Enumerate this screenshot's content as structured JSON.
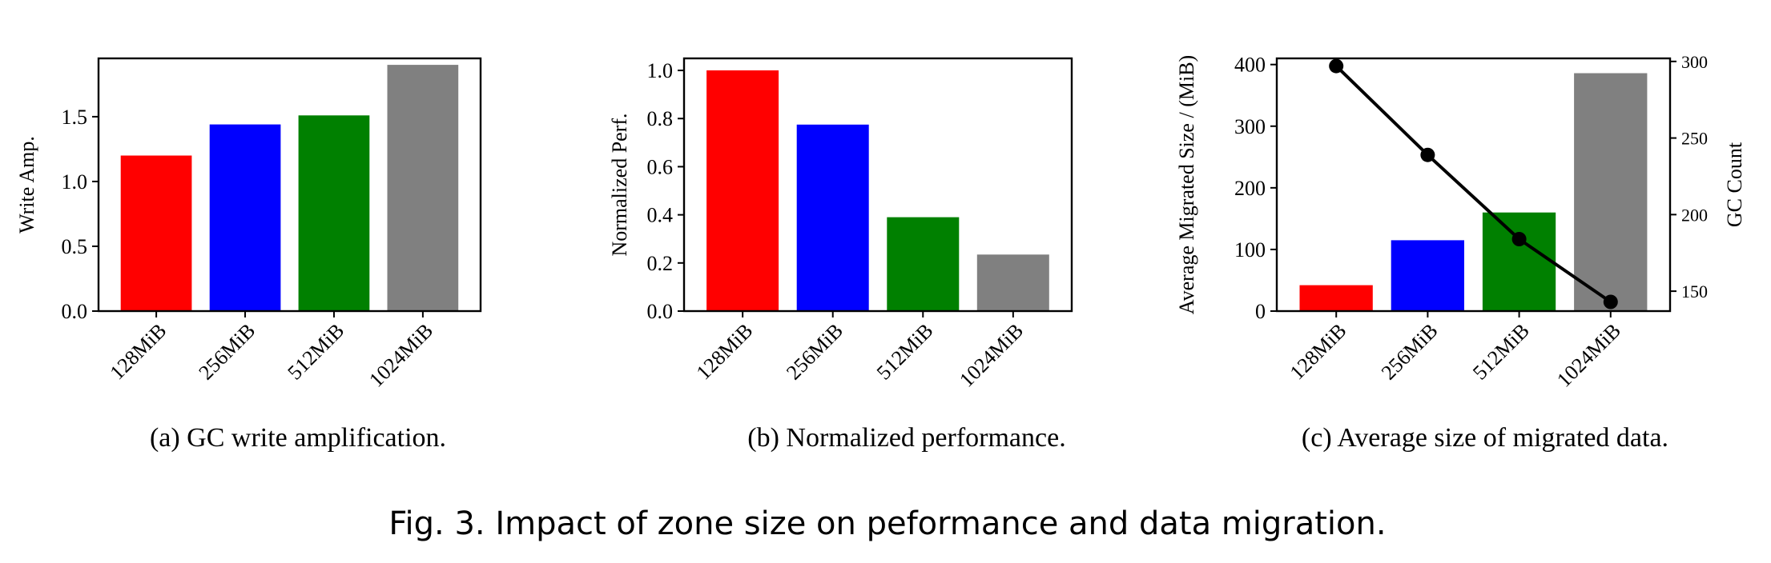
{
  "figure_caption": "Fig. 3.  Impact of zone size on peformance and data migration.",
  "chart_data": [
    {
      "type": "bar",
      "caption": "(a)  GC write amplification.",
      "categories": [
        "128MiB",
        "256MiB",
        "512MiB",
        "1024MiB"
      ],
      "values": [
        1.2,
        1.44,
        1.51,
        1.9
      ],
      "colors": [
        "#ff0000",
        "#0000ff",
        "#008000",
        "#808080"
      ],
      "ylabel": "Write Amp.",
      "ylim": [
        0,
        1.95
      ],
      "yticks": [
        0.0,
        0.5,
        1.0,
        1.5
      ],
      "ytick_labels": [
        "0.0",
        "0.5",
        "1.0",
        "1.5"
      ]
    },
    {
      "type": "bar",
      "caption": "(b)  Normalized performance.",
      "categories": [
        "128MiB",
        "256MiB",
        "512MiB",
        "1024MiB"
      ],
      "values": [
        1.0,
        0.775,
        0.39,
        0.235
      ],
      "colors": [
        "#ff0000",
        "#0000ff",
        "#008000",
        "#808080"
      ],
      "ylabel": "Normalized Perf.",
      "ylim": [
        0,
        1.05
      ],
      "yticks": [
        0.0,
        0.2,
        0.4,
        0.6,
        0.8,
        1.0
      ],
      "ytick_labels": [
        "0.0",
        "0.2",
        "0.4",
        "0.6",
        "0.8",
        "1.0"
      ]
    },
    {
      "type": "bar+line",
      "caption": "(c)  Average size of migrated data.",
      "categories": [
        "128MiB",
        "256MiB",
        "512MiB",
        "1024MiB"
      ],
      "values": [
        42,
        115,
        160,
        386
      ],
      "colors": [
        "#ff0000",
        "#0000ff",
        "#008000",
        "#808080"
      ],
      "ylabel": "Average Migrated Size / (MiB)",
      "ylim": [
        0,
        410
      ],
      "yticks": [
        0,
        100,
        200,
        300,
        400
      ],
      "ytick_labels": [
        "0",
        "100",
        "200",
        "300",
        "400"
      ],
      "line": {
        "name": "GC Count",
        "values": [
          297,
          239,
          184,
          143
        ],
        "color": "#000000"
      },
      "y2label": "GC Count",
      "y2lim": [
        137,
        302
      ],
      "y2ticks": [
        150,
        200,
        250,
        300
      ],
      "y2tick_labels": [
        "150",
        "200",
        "250",
        "300"
      ]
    }
  ]
}
